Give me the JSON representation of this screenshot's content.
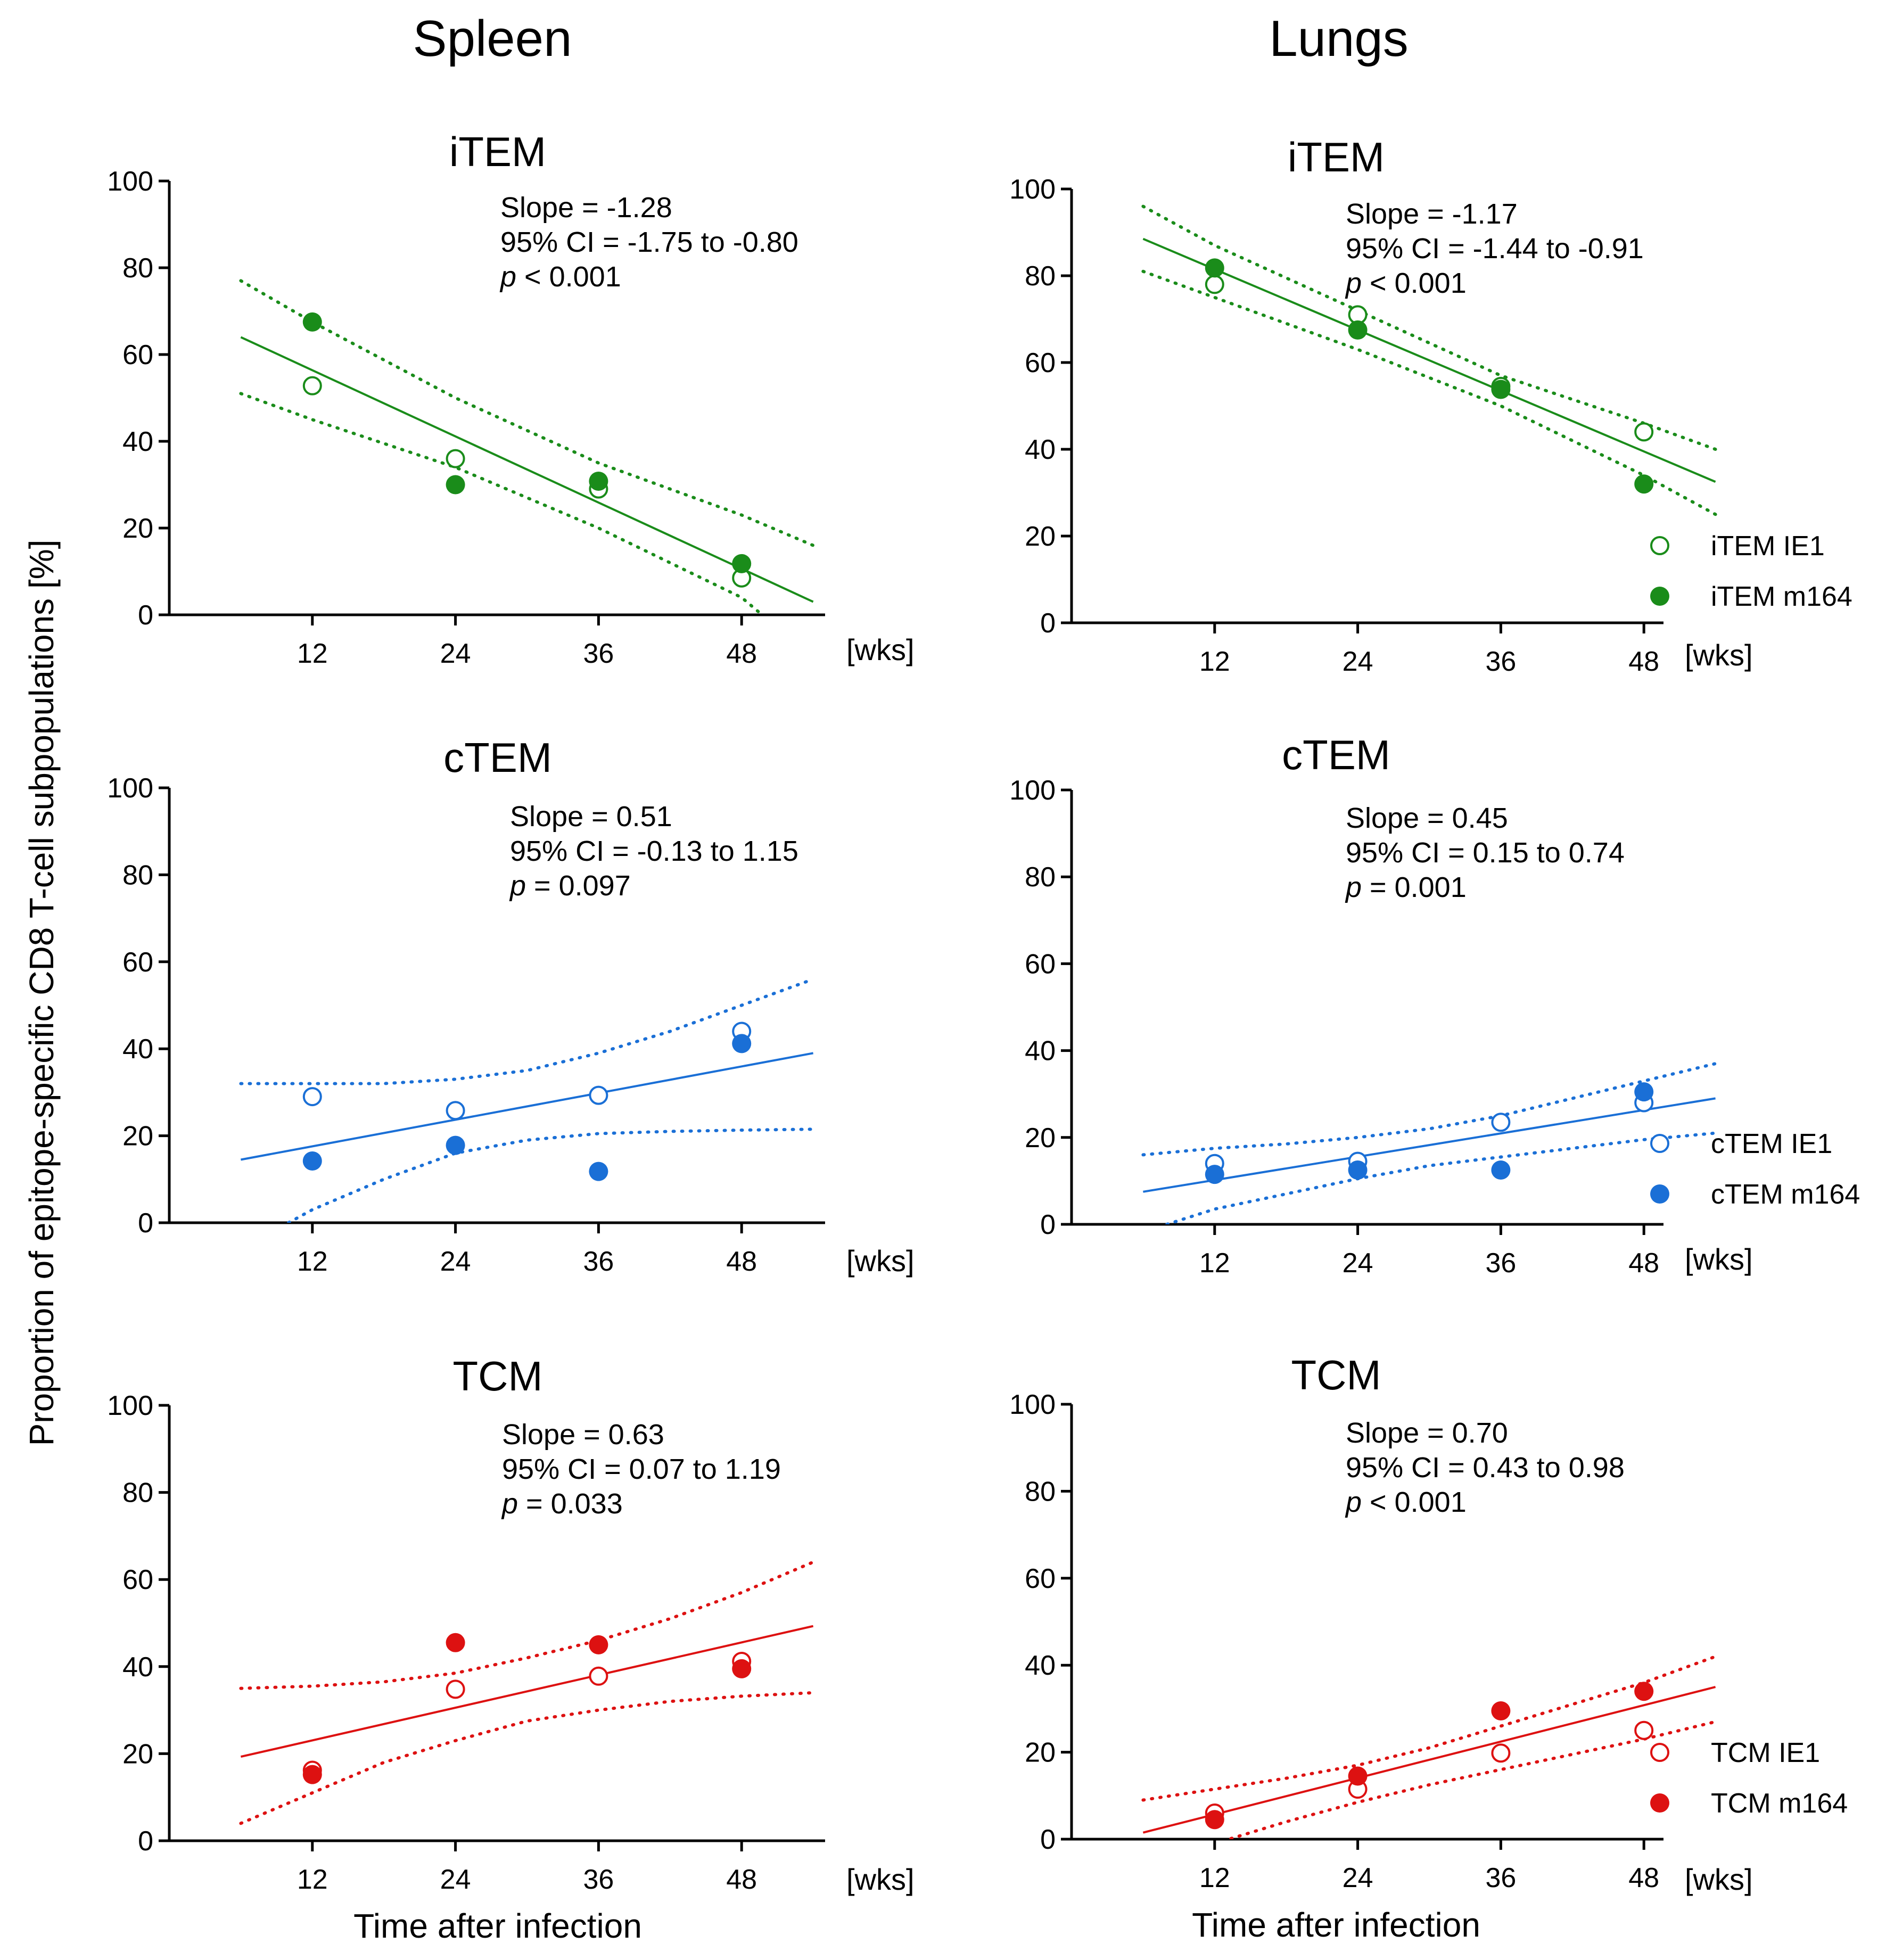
{
  "figure": {
    "col_titles": [
      "Spleen",
      "Lungs"
    ],
    "ylabel": "Proportion of epitope-specific CD8 T-cell subpopulations [%]",
    "xlabel": "Time after infection",
    "x_unit": "[wks]"
  },
  "colors": {
    "iTEM": "#1a8c1a",
    "cTEM": "#1a6fd6",
    "TCM": "#dd1111"
  },
  "chart_data": [
    {
      "type": "scatter",
      "id": "spleen-item",
      "tissue": "Spleen",
      "title": "iTEM",
      "color_key": "iTEM",
      "xlabel": "Time after infection",
      "ylabel": "Proportion of epitope-specific CD8 T-cell subpopulations [%]",
      "x_ticks": [
        12,
        24,
        36,
        48
      ],
      "y_ticks": [
        0,
        20,
        40,
        60,
        80,
        100
      ],
      "xlim": [
        0,
        54
      ],
      "ylim": [
        0,
        100
      ],
      "x_unit": "[wks]",
      "stats": {
        "slope": "Slope = -1.28",
        "ci": "95% CI = -1.75 to -0.80",
        "p": "< 0.001"
      },
      "series": [
        {
          "name": "iTEM IE1",
          "marker": "open",
          "x": [
            12,
            24,
            36,
            48
          ],
          "y": [
            52.8,
            36,
            29,
            8.5
          ]
        },
        {
          "name": "iTEM m164",
          "marker": "filled",
          "x": [
            12,
            24,
            36,
            48
          ],
          "y": [
            67.5,
            30,
            30.8,
            11.8
          ]
        }
      ],
      "fit": {
        "x": [
          6,
          54
        ],
        "y": [
          64,
          3
        ]
      },
      "ci_upper": {
        "x": [
          6,
          12,
          24,
          36,
          48,
          54
        ],
        "y": [
          77,
          67.5,
          50,
          35,
          23,
          16
        ]
      },
      "ci_lower": {
        "x": [
          6,
          12,
          24,
          36,
          48,
          54
        ],
        "y": [
          51,
          45,
          34,
          20,
          4,
          -10
        ]
      }
    },
    {
      "type": "scatter",
      "id": "lungs-item",
      "tissue": "Lungs",
      "title": "iTEM",
      "color_key": "iTEM",
      "xlabel": "Time after infection",
      "ylabel": "Proportion of epitope-specific CD8 T-cell subpopulations [%]",
      "x_ticks": [
        12,
        24,
        36,
        48
      ],
      "y_ticks": [
        0,
        20,
        40,
        60,
        80,
        100
      ],
      "xlim": [
        0,
        54
      ],
      "ylim": [
        0,
        100
      ],
      "x_unit": "[wks]",
      "stats": {
        "slope": "Slope = -1.17",
        "ci": "95% CI = -1.44 to -0.91",
        "p": "< 0.001"
      },
      "series": [
        {
          "name": "iTEM IE1",
          "marker": "open",
          "x": [
            12,
            24,
            36,
            48
          ],
          "y": [
            78,
            71,
            54.5,
            44
          ]
        },
        {
          "name": "iTEM m164",
          "marker": "filled",
          "x": [
            12,
            24,
            36,
            48
          ],
          "y": [
            81.8,
            67.5,
            53.8,
            32
          ]
        }
      ],
      "fit": {
        "x": [
          6,
          54
        ],
        "y": [
          88.5,
          32.5
        ]
      },
      "ci_upper": {
        "x": [
          6,
          12,
          24,
          36,
          48,
          54
        ],
        "y": [
          96,
          87,
          72,
          57,
          46,
          40
        ]
      },
      "ci_lower": {
        "x": [
          6,
          12,
          24,
          36,
          48,
          54
        ],
        "y": [
          81,
          75,
          63,
          50,
          34,
          25
        ]
      }
    },
    {
      "type": "scatter",
      "id": "spleen-ctem",
      "tissue": "Spleen",
      "title": "cTEM",
      "color_key": "cTEM",
      "xlabel": "Time after infection",
      "ylabel": "Proportion of epitope-specific CD8 T-cell subpopulations [%]",
      "x_ticks": [
        12,
        24,
        36,
        48
      ],
      "y_ticks": [
        0,
        20,
        40,
        60,
        80,
        100
      ],
      "xlim": [
        0,
        54
      ],
      "ylim": [
        0,
        100
      ],
      "x_unit": "[wks]",
      "stats": {
        "slope": "Slope = 0.51",
        "ci": "95% CI = -0.13 to 1.15",
        "p": "= 0.097"
      },
      "series": [
        {
          "name": "cTEM IE1",
          "marker": "open",
          "x": [
            12,
            24,
            36,
            48
          ],
          "y": [
            29,
            25.8,
            29.3,
            44
          ]
        },
        {
          "name": "cTEM m164",
          "marker": "filled",
          "x": [
            12,
            24,
            36,
            48
          ],
          "y": [
            14.2,
            17.8,
            11.8,
            41.2
          ]
        }
      ],
      "fit": {
        "x": [
          6,
          54
        ],
        "y": [
          14.5,
          39
        ]
      },
      "ci_upper": {
        "x": [
          6,
          12,
          18,
          24,
          30,
          36,
          42,
          48,
          54
        ],
        "y": [
          32,
          32,
          32,
          33,
          35,
          39,
          44,
          50,
          56
        ]
      },
      "ci_lower": {
        "x": [
          10,
          12,
          18,
          24,
          30,
          36,
          42,
          48,
          54
        ],
        "y": [
          0,
          3,
          10,
          16,
          19,
          20.5,
          21,
          21.3,
          21.5
        ]
      }
    },
    {
      "type": "scatter",
      "id": "lungs-ctem",
      "tissue": "Lungs",
      "title": "cTEM",
      "color_key": "cTEM",
      "xlabel": "Time after infection",
      "ylabel": "Proportion of epitope-specific CD8 T-cell subpopulations [%]",
      "x_ticks": [
        12,
        24,
        36,
        48
      ],
      "y_ticks": [
        0,
        20,
        40,
        60,
        80,
        100
      ],
      "xlim": [
        0,
        54
      ],
      "ylim": [
        0,
        100
      ],
      "x_unit": "[wks]",
      "stats": {
        "slope": "Slope = 0.45",
        "ci": "95% CI = 0.15 to 0.74",
        "p": "= 0.001"
      },
      "series": [
        {
          "name": "cTEM IE1",
          "marker": "open",
          "x": [
            12,
            24,
            36,
            48
          ],
          "y": [
            14,
            14.5,
            23.5,
            28
          ]
        },
        {
          "name": "cTEM m164",
          "marker": "filled",
          "x": [
            12,
            24,
            36,
            48
          ],
          "y": [
            11.5,
            12.5,
            12.5,
            30.5
          ]
        }
      ],
      "fit": {
        "x": [
          6,
          54
        ],
        "y": [
          7.5,
          29
        ]
      },
      "ci_upper": {
        "x": [
          6,
          12,
          18,
          24,
          30,
          36,
          42,
          48,
          54
        ],
        "y": [
          16,
          17.5,
          18.5,
          20,
          22,
          25,
          29,
          33,
          37
        ]
      },
      "ci_lower": {
        "x": [
          8,
          12,
          18,
          24,
          30,
          36,
          42,
          48,
          54
        ],
        "y": [
          0,
          3.5,
          7,
          10.5,
          13.5,
          15.5,
          17.5,
          19.5,
          21
        ]
      }
    },
    {
      "type": "scatter",
      "id": "spleen-tcm",
      "tissue": "Spleen",
      "title": "TCM",
      "color_key": "TCM",
      "xlabel": "Time after infection",
      "ylabel": "Proportion of epitope-specific CD8 T-cell subpopulations [%]",
      "x_ticks": [
        12,
        24,
        36,
        48
      ],
      "y_ticks": [
        0,
        20,
        40,
        60,
        80,
        100
      ],
      "xlim": [
        0,
        54
      ],
      "ylim": [
        0,
        100
      ],
      "x_unit": "[wks]",
      "stats": {
        "slope": "Slope = 0.63",
        "ci": "95% CI = 0.07 to 1.19",
        "p": "= 0.033"
      },
      "series": [
        {
          "name": "TCM IE1",
          "marker": "open",
          "x": [
            12,
            24,
            36,
            48
          ],
          "y": [
            16.2,
            34.8,
            37.8,
            41.2
          ]
        },
        {
          "name": "TCM m164",
          "marker": "filled",
          "x": [
            12,
            24,
            36,
            48
          ],
          "y": [
            15.2,
            45.5,
            45,
            39.5
          ]
        }
      ],
      "fit": {
        "x": [
          6,
          54
        ],
        "y": [
          19.3,
          49.3
        ]
      },
      "ci_upper": {
        "x": [
          6,
          12,
          18,
          24,
          30,
          36,
          42,
          48,
          54
        ],
        "y": [
          35,
          35.5,
          36.5,
          38.5,
          42,
          46,
          51,
          57,
          64
        ]
      },
      "ci_lower": {
        "x": [
          6,
          12,
          18,
          24,
          30,
          36,
          42,
          48,
          54
        ],
        "y": [
          4,
          11,
          18,
          23,
          27.5,
          30,
          32,
          33.2,
          34
        ]
      }
    },
    {
      "type": "scatter",
      "id": "lungs-tcm",
      "tissue": "Lungs",
      "title": "TCM",
      "color_key": "TCM",
      "xlabel": "Time after infection",
      "ylabel": "Proportion of epitope-specific CD8 T-cell subpopulations [%]",
      "x_ticks": [
        12,
        24,
        36,
        48
      ],
      "y_ticks": [
        0,
        20,
        40,
        60,
        80,
        100
      ],
      "xlim": [
        0,
        54
      ],
      "ylim": [
        0,
        100
      ],
      "x_unit": "[wks]",
      "stats": {
        "slope": "Slope = 0.70",
        "ci": "95% CI = 0.43 to 0.98",
        "p": "< 0.001"
      },
      "series": [
        {
          "name": "TCM IE1",
          "marker": "open",
          "x": [
            12,
            24,
            36,
            48
          ],
          "y": [
            6,
            11.5,
            19.8,
            25
          ]
        },
        {
          "name": "TCM m164",
          "marker": "filled",
          "x": [
            12,
            24,
            36,
            48
          ],
          "y": [
            4.5,
            14.5,
            29.5,
            34
          ]
        }
      ],
      "fit": {
        "x": [
          6,
          54
        ],
        "y": [
          1.5,
          35
        ]
      },
      "ci_upper": {
        "x": [
          6,
          12,
          18,
          24,
          30,
          36,
          42,
          48,
          54
        ],
        "y": [
          9,
          11.5,
          14,
          17,
          21,
          26,
          31,
          36,
          42
        ]
      },
      "ci_lower": {
        "x": [
          12,
          18,
          24,
          30,
          36,
          42,
          48,
          54
        ],
        "y": [
          -1,
          4,
          8.5,
          12.5,
          16,
          19.5,
          23,
          27
        ]
      }
    }
  ],
  "legends": [
    {
      "id": "legend-item",
      "items": [
        {
          "label": "iTEM IE1",
          "marker": "open"
        },
        {
          "label": "iTEM m164",
          "marker": "filled"
        }
      ],
      "color_key": "iTEM"
    },
    {
      "id": "legend-ctem",
      "items": [
        {
          "label": "cTEM IE1",
          "marker": "open"
        },
        {
          "label": "cTEM m164",
          "marker": "filled"
        }
      ],
      "color_key": "cTEM"
    },
    {
      "id": "legend-tcm",
      "items": [
        {
          "label": "TCM IE1",
          "marker": "open"
        },
        {
          "label": "TCM m164",
          "marker": "filled"
        }
      ],
      "color_key": "TCM"
    }
  ]
}
